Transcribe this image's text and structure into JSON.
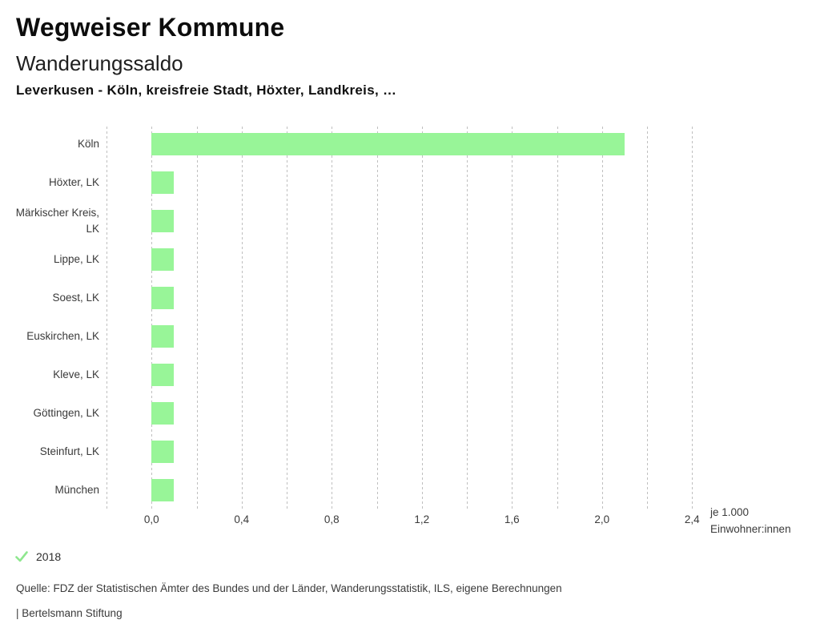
{
  "header": {
    "title": "Wegweiser Kommune",
    "subtitle": "Wanderungssaldo",
    "selection": "Leverkusen - Köln, kreisfreie Stadt, Höxter, Landkreis, …"
  },
  "chart_data": {
    "type": "bar",
    "orientation": "horizontal",
    "title": "Wanderungssaldo",
    "categories": [
      "Köln",
      "Höxter, LK",
      "Märkischer Kreis, LK",
      "Lippe, LK",
      "Soest, LK",
      "Euskirchen, LK",
      "Kleve, LK",
      "Göttingen, LK",
      "Steinfurt, LK",
      "München"
    ],
    "series": [
      {
        "name": "2018",
        "values": [
          2.1,
          0.1,
          0.1,
          0.1,
          0.1,
          0.1,
          0.1,
          0.1,
          0.1,
          0.1
        ]
      }
    ],
    "xlabel": "je 1.000 Einwohner:innen",
    "xlim": [
      -0.2,
      2.4
    ],
    "xtick_minor_step": 0.2,
    "xticks": [
      0.0,
      0.4,
      0.8,
      1.2,
      1.6,
      2.0,
      2.4
    ],
    "xtick_labels": [
      "0,0",
      "0,4",
      "0,8",
      "1,2",
      "1,6",
      "2,0",
      "2,4"
    ],
    "grid": "vertical-dashed",
    "legend_position": "bottom-left",
    "bar_color": "#98f598"
  },
  "axis_unit_lines": [
    "je 1.000",
    "Einwohner:innen"
  ],
  "legend": {
    "items": [
      {
        "label": "2018",
        "icon": "check-icon",
        "color": "#8fe78f"
      }
    ]
  },
  "footer": {
    "source": "Quelle: FDZ der Statistischen Ämter des Bundes und der Länder, Wanderungsstatistik, ILS, eigene Berechnungen",
    "brand": "| Bertelsmann Stiftung"
  },
  "colors": {
    "bar": "#98f598",
    "grid": "#bfbfbf",
    "text": "#3a3a3a"
  }
}
